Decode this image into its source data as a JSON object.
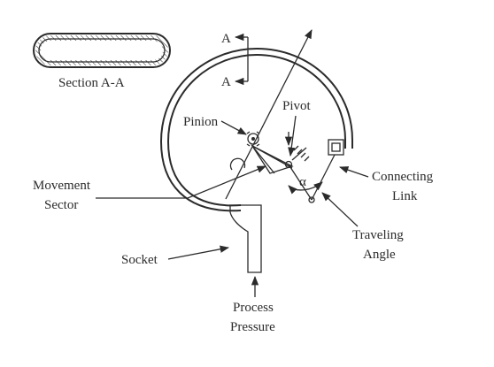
{
  "labels": {
    "section": "Section A-A",
    "a_top": "A",
    "a_bottom": "A",
    "pinion": "Pinion",
    "pivot": "Pivot",
    "movement_line1": "Movement",
    "movement_line2": "Sector",
    "connecting_line1": "Connecting",
    "connecting_line2": "Link",
    "traveling_line1": "Traveling",
    "traveling_line2": "Angle",
    "socket": "Socket",
    "process_line1": "Process",
    "process_line2": "Pressure",
    "alpha": "α"
  }
}
